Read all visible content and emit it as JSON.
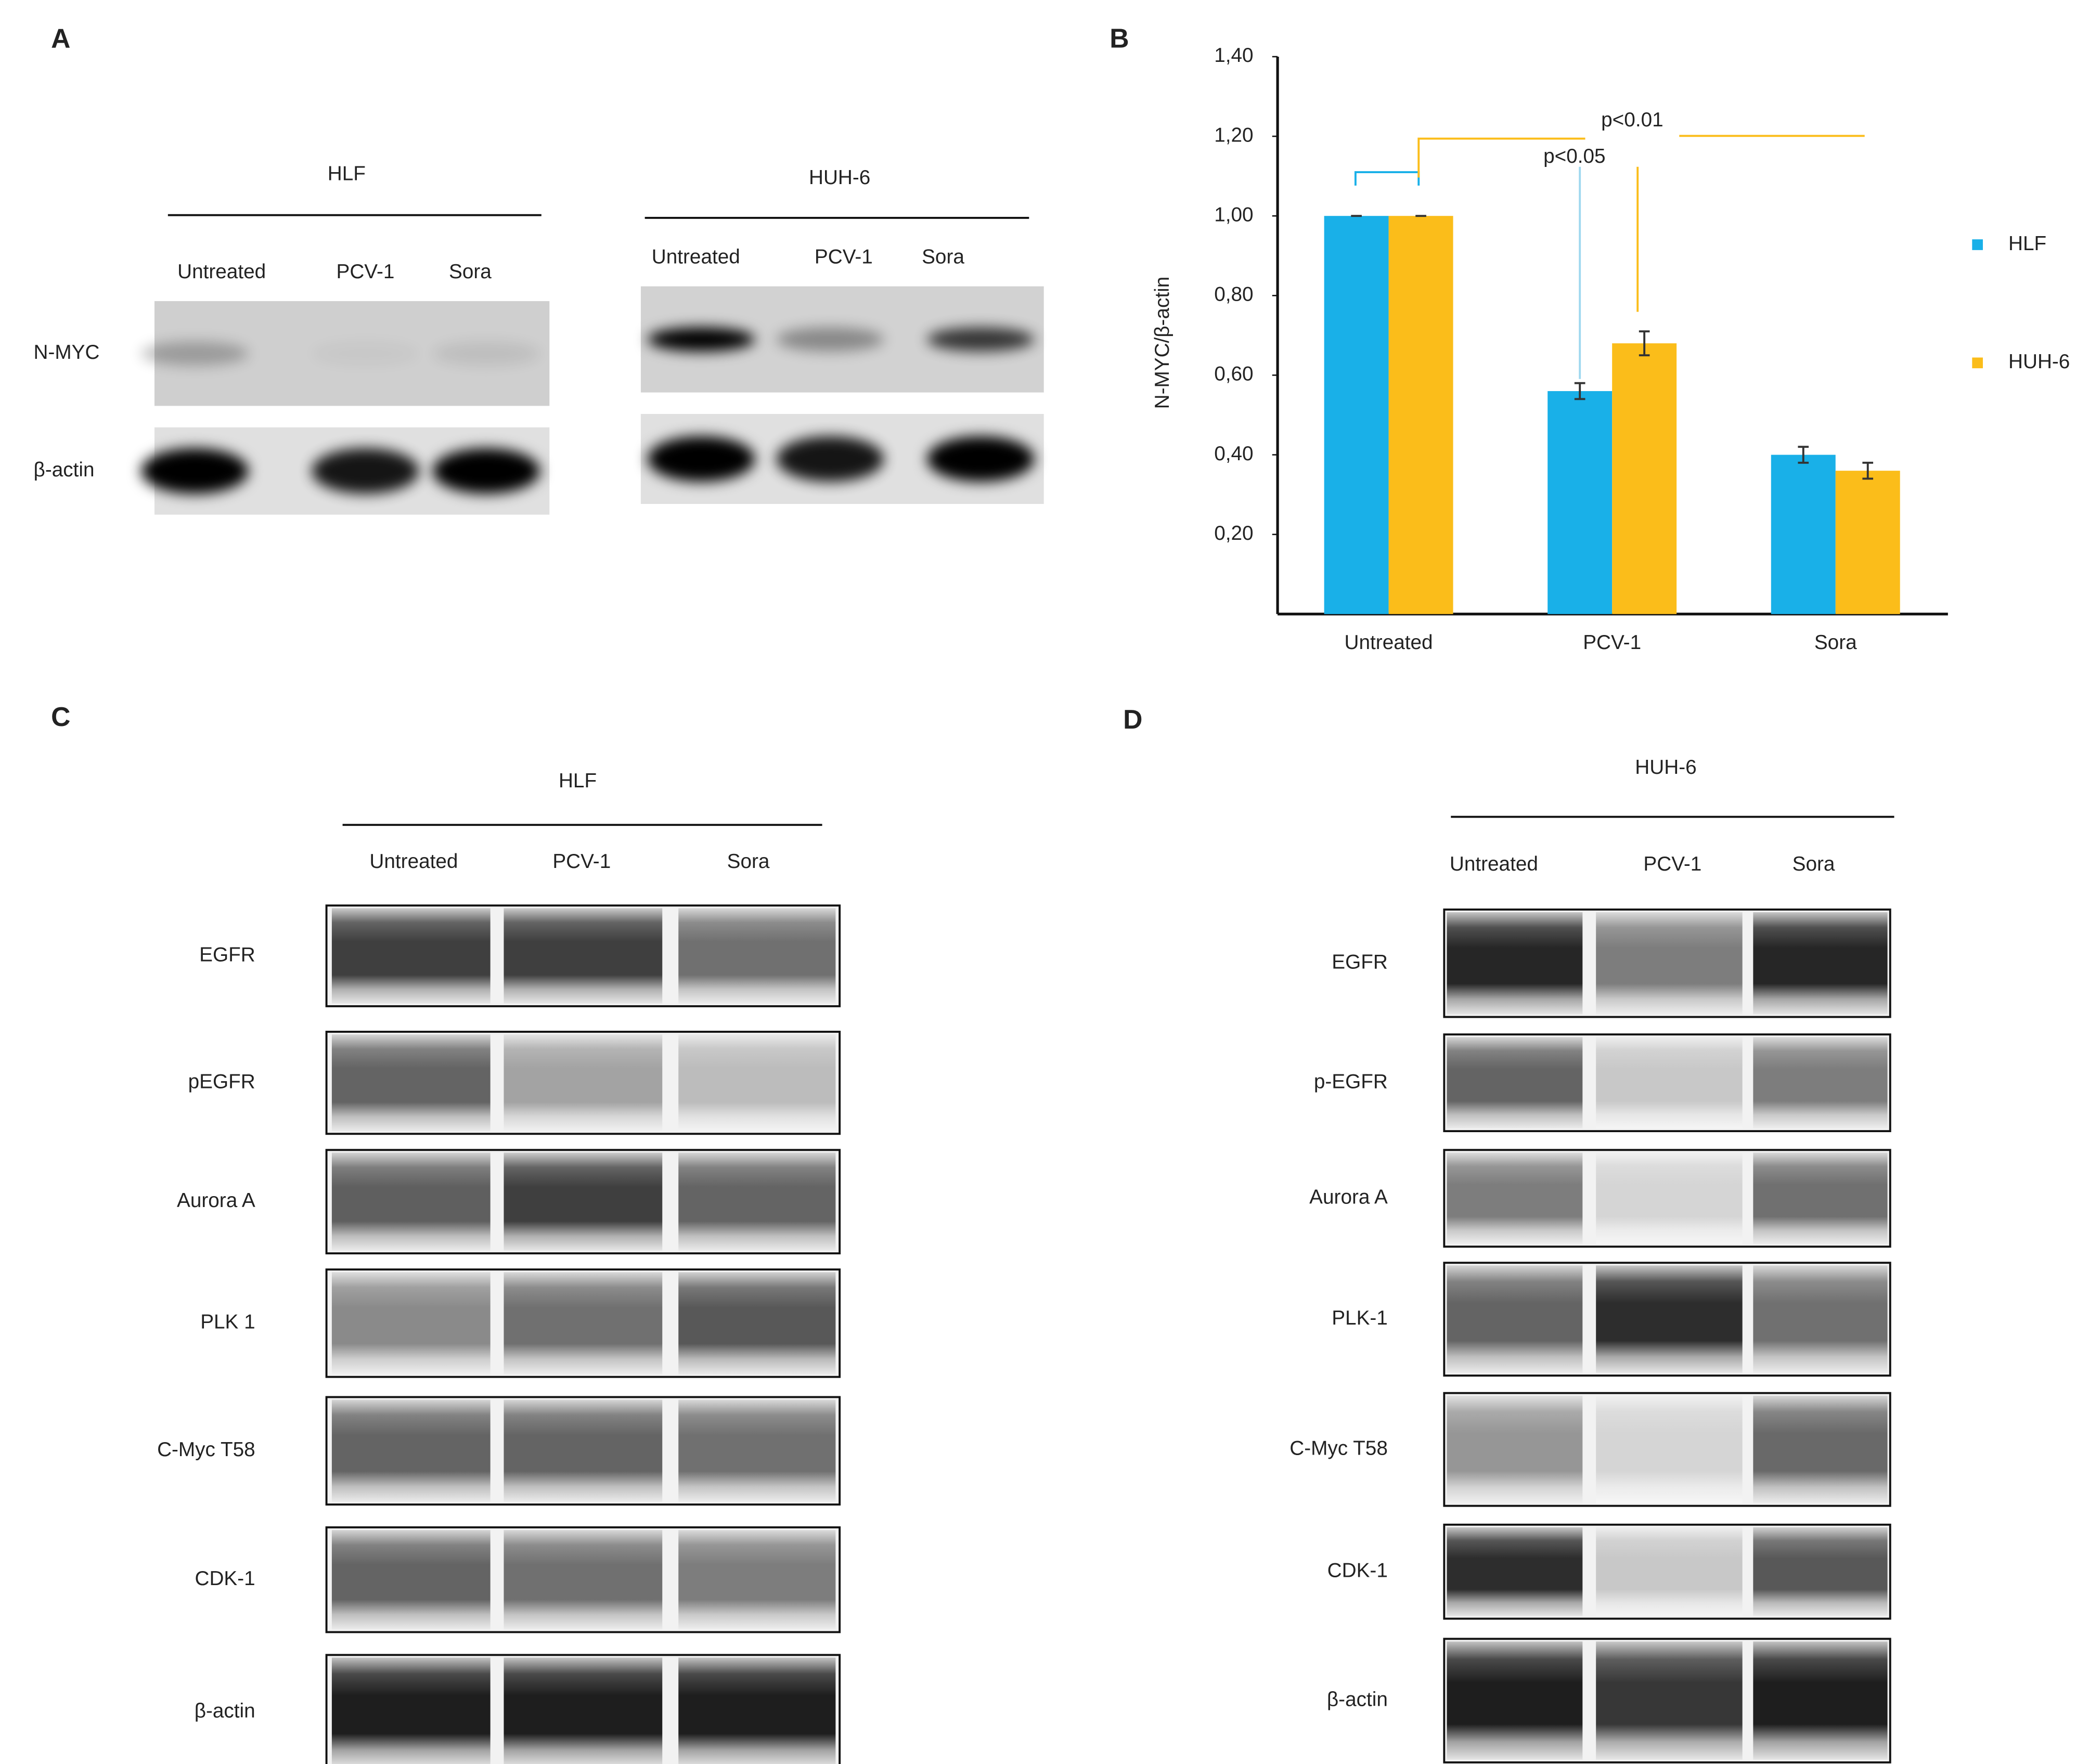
{
  "panels": {
    "A": {
      "letter": "A",
      "groups": [
        {
          "cell_line": "HLF",
          "lanes": [
            "Untreated",
            "PCV-1",
            "Sora"
          ]
        },
        {
          "cell_line": "HUH-6",
          "lanes": [
            "Untreated",
            "PCV-1",
            "Sora"
          ]
        }
      ],
      "proteins": [
        "N-MYC",
        "β-actin"
      ]
    },
    "C": {
      "letter": "C",
      "cell_line": "HLF",
      "lanes": [
        "Untreated",
        "PCV-1",
        "Sora"
      ],
      "proteins": [
        "EGFR",
        "pEGFR",
        "Aurora A",
        "PLK 1",
        "C-Myc T58",
        "CDK-1",
        "β-actin"
      ]
    },
    "D": {
      "letter": "D",
      "cell_line": "HUH-6",
      "lanes": [
        "Untreated",
        "PCV-1",
        "Sora"
      ],
      "proteins": [
        "EGFR",
        "p-EGFR",
        "Aurora A",
        "PLK-1",
        "C-Myc T58",
        "CDK-1",
        "β-actin"
      ]
    }
  },
  "chart_data": {
    "type": "bar",
    "letter": "B",
    "y_label": "N-MYC/β-actin",
    "categories": [
      "Untreated",
      "PCV-1",
      "Sora"
    ],
    "series": [
      {
        "name": "HLF",
        "color": "#19b0e8",
        "values": [
          1.0,
          0.56,
          0.4
        ],
        "errors": [
          0,
          0.02,
          0.02
        ]
      },
      {
        "name": "HUH-6",
        "color": "#fbbd1a",
        "values": [
          1.0,
          0.68,
          0.36
        ],
        "errors": [
          0,
          0.03,
          0.02
        ]
      }
    ],
    "ylim": [
      0,
      1.4
    ],
    "yticks": [
      {
        "value": 0.2,
        "label": "0,20"
      },
      {
        "value": 0.4,
        "label": "0,40"
      },
      {
        "value": 0.6,
        "label": "0,60"
      },
      {
        "value": 0.8,
        "label": "0,80"
      },
      {
        "value": 1.0,
        "label": "1,00"
      },
      {
        "value": 1.2,
        "label": "1,20"
      },
      {
        "value": 1.4,
        "label": "1,40"
      }
    ],
    "annotations": [
      "p<0.01",
      "p<0.05"
    ]
  }
}
